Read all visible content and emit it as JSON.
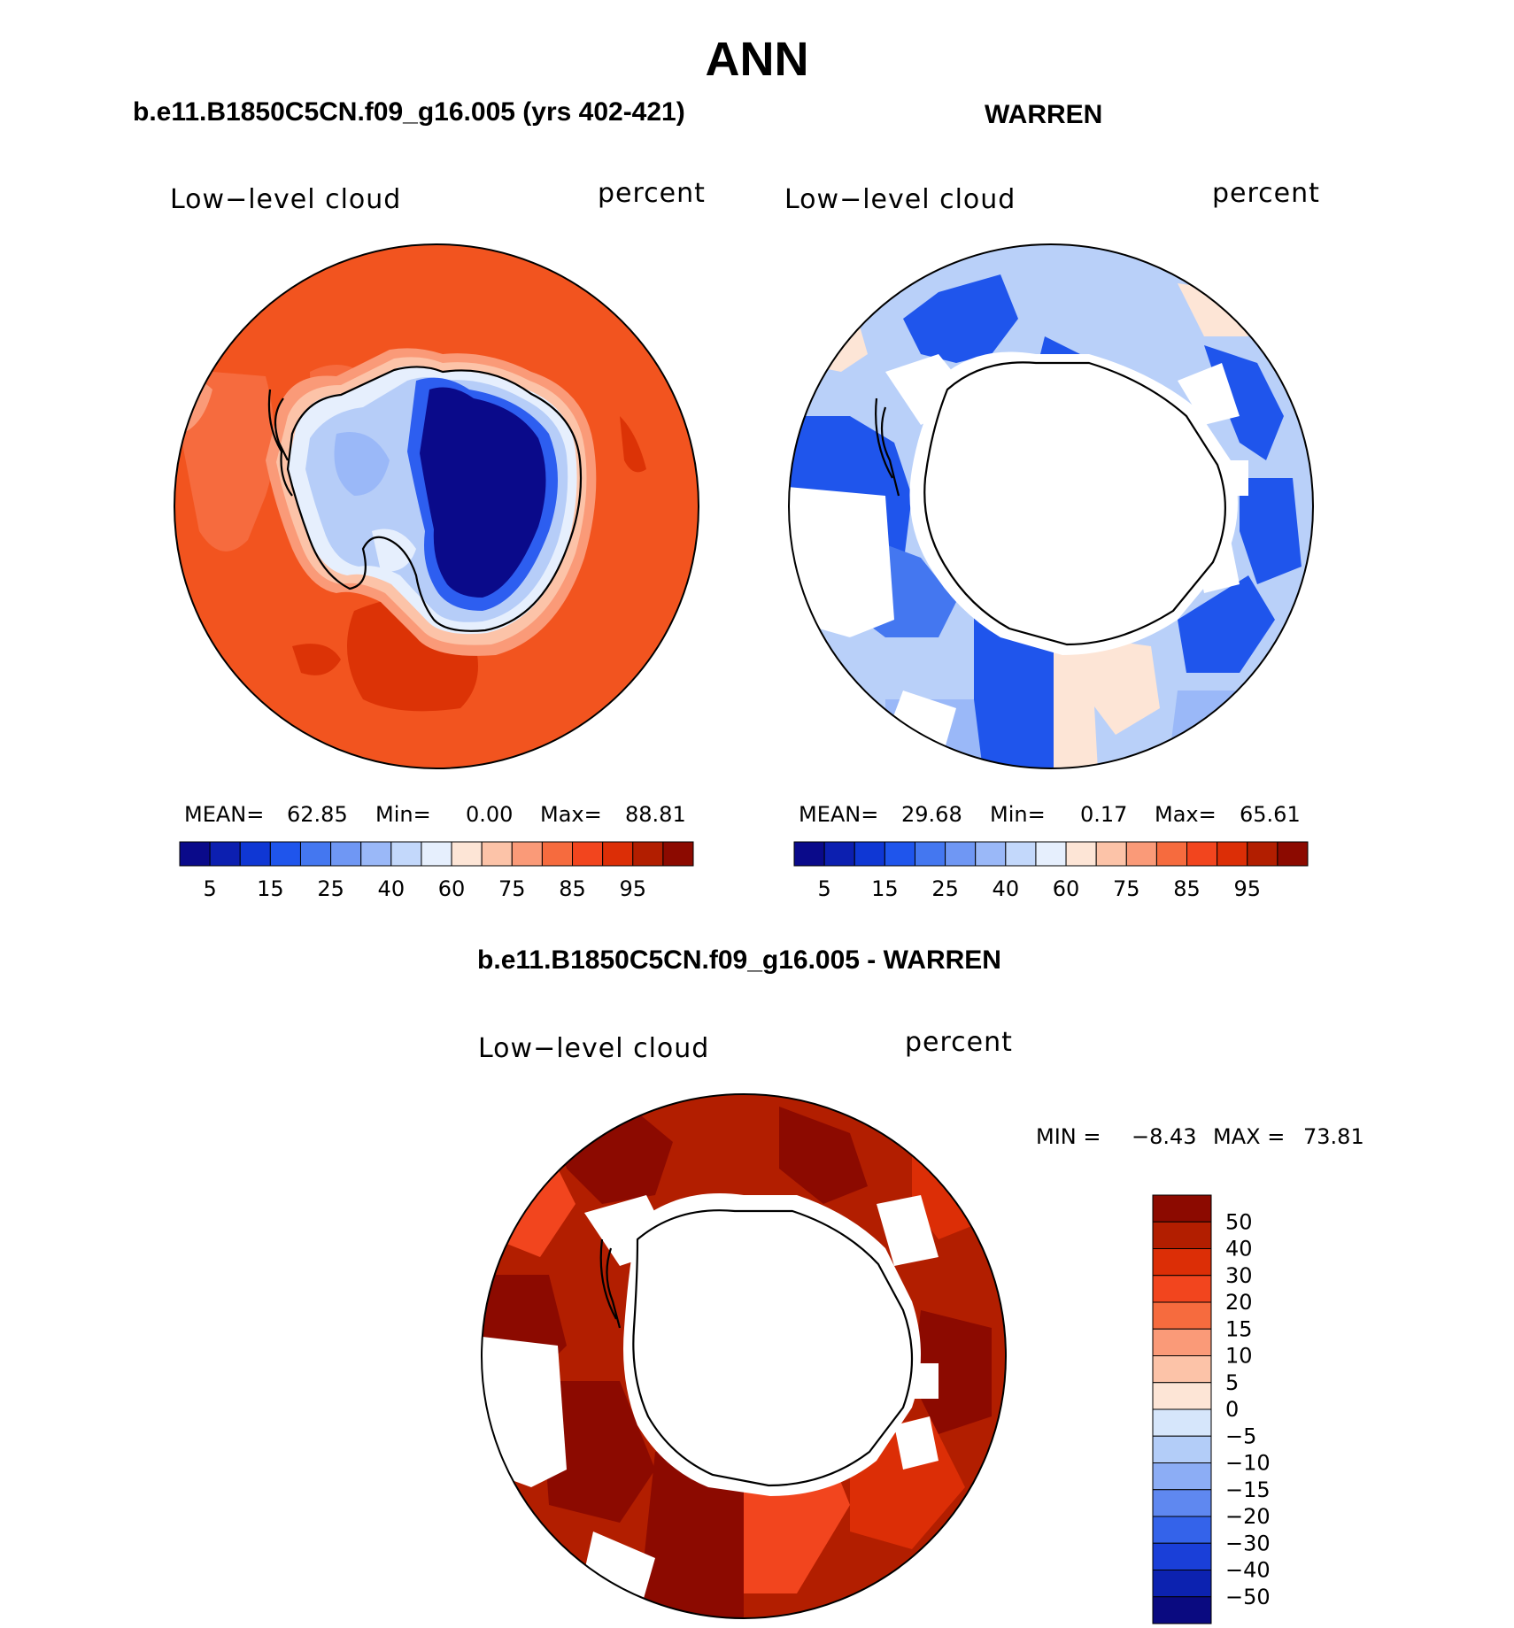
{
  "title": "ANN",
  "panels": [
    {
      "id": "model",
      "title": "b.e11.B1850C5CN.f09_g16.005 (yrs 402-421)",
      "variable": "Low−level cloud",
      "units": "percent",
      "stats": {
        "mean_label": "MEAN=",
        "mean": "62.85",
        "min_label": "Min=",
        "min": "0.00",
        "max_label": "Max=",
        "max": "88.81"
      }
    },
    {
      "id": "obs",
      "title": "WARREN",
      "variable": "Low−level cloud",
      "units": "percent",
      "stats": {
        "mean_label": "MEAN=",
        "mean": "29.68",
        "min_label": "Min=",
        "min": "0.17",
        "max_label": "Max=",
        "max": "65.61"
      }
    }
  ],
  "diff_panel": {
    "title": "b.e11.B1850C5CN.f09_g16.005 - WARREN",
    "variable": "Low−level cloud",
    "units": "percent",
    "minmax": {
      "min_label": "MIN =",
      "min": "−8.43",
      "max_label": "MAX =",
      "max": "73.81"
    }
  },
  "chart_data": [
    {
      "type": "heatmap",
      "projection": "south polar stereographic",
      "title": "b.e11.B1850C5CN.f09_g16.005 (yrs 402-421)",
      "variable": "Low-level cloud",
      "units": "percent",
      "mean": 62.85,
      "min": 0.0,
      "max": 88.81,
      "colorbar": {
        "levels": [
          5,
          10,
          15,
          20,
          25,
          30,
          40,
          50,
          60,
          70,
          75,
          80,
          85,
          90,
          95
        ],
        "tick_labels": [
          "5",
          "15",
          "25",
          "40",
          "60",
          "75",
          "85",
          "95"
        ],
        "colors": [
          "#0a0a8a",
          "#0c1fb0",
          "#0f37d4",
          "#1f55ec",
          "#4477f0",
          "#6f97f4",
          "#9ab8f8",
          "#c3d8fb",
          "#e6effd",
          "#fde5d6",
          "#fcc3a8",
          "#fa9a78",
          "#f66b3e",
          "#f2451e",
          "#dc2e06",
          "#b21e00",
          "#8c0a00"
        ]
      }
    },
    {
      "type": "heatmap",
      "projection": "south polar stereographic",
      "title": "WARREN",
      "variable": "Low-level cloud",
      "units": "percent",
      "mean": 29.68,
      "min": 0.17,
      "max": 65.61,
      "colorbar": {
        "levels": [
          5,
          10,
          15,
          20,
          25,
          30,
          40,
          50,
          60,
          70,
          75,
          80,
          85,
          90,
          95
        ],
        "tick_labels": [
          "5",
          "15",
          "25",
          "40",
          "60",
          "75",
          "85",
          "95"
        ],
        "colors": [
          "#0a0a8a",
          "#0c1fb0",
          "#0f37d4",
          "#1f55ec",
          "#4477f0",
          "#6f97f4",
          "#9ab8f8",
          "#c3d8fb",
          "#e6effd",
          "#fde5d6",
          "#fcc3a8",
          "#fa9a78",
          "#f66b3e",
          "#f2451e",
          "#dc2e06",
          "#b21e00",
          "#8c0a00"
        ]
      }
    },
    {
      "type": "heatmap",
      "projection": "south polar stereographic",
      "title": "b.e11.B1850C5CN.f09_g16.005 - WARREN",
      "variable": "Low-level cloud",
      "units": "percent",
      "min": -8.43,
      "max": 73.81,
      "colorbar": {
        "orientation": "vertical",
        "tick_labels": [
          "50",
          "40",
          "30",
          "20",
          "15",
          "10",
          "5",
          "0",
          "−5",
          "−10",
          "−15",
          "−20",
          "−30",
          "−40",
          "−50"
        ],
        "colors": [
          "#8c0a00",
          "#b21e00",
          "#dc2e06",
          "#f2451e",
          "#f66b3e",
          "#fa9a78",
          "#fcc3a8",
          "#fde5d6",
          "#d6e6fb",
          "#b3cdf8",
          "#8cadf5",
          "#5f88f0",
          "#3463ea",
          "#1a3fd8",
          "#0c22b0",
          "#0a0a80"
        ]
      }
    }
  ]
}
